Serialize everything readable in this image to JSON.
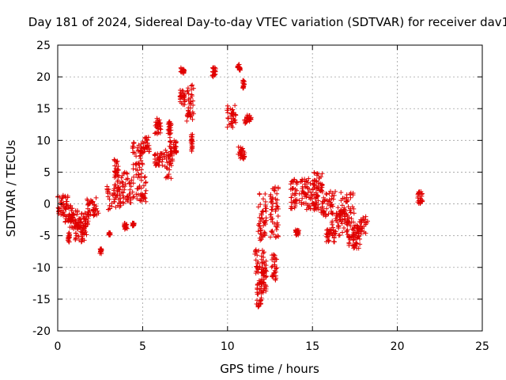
{
  "chart_data": {
    "type": "scatter",
    "title": "Day 181 of 2024, Sidereal Day-to-day VTEC variation (SDTVAR) for receiver dav1",
    "xlabel": "GPS time / hours",
    "ylabel": "SDTVAR / TECUs",
    "xlim": [
      0,
      25
    ],
    "ylim": [
      -20,
      25
    ],
    "xticks": [
      0,
      5,
      10,
      15,
      20,
      25
    ],
    "yticks": [
      -20,
      -15,
      -10,
      -5,
      0,
      5,
      10,
      15,
      20,
      25
    ],
    "xtick_labels": [
      "0",
      "5",
      "10",
      "15",
      "20",
      "25"
    ],
    "ytick_labels": [
      "-20",
      "-15",
      "-10",
      "-5",
      "0",
      "5",
      "10",
      "15",
      "20",
      "25"
    ],
    "grid": true,
    "marker": "+",
    "color": "#e00000",
    "series": [
      {
        "name": "SDTVAR",
        "clusters": [
          {
            "x": [
              0.0,
              0.6
            ],
            "y": [
              -2,
              1.5
            ]
          },
          {
            "x": [
              0.4,
              0.9
            ],
            "y": [
              -3,
              0
            ]
          },
          {
            "x": [
              0.6,
              0.7
            ],
            "y": [
              -6,
              -4.5
            ]
          },
          {
            "x": [
              0.7,
              1.2
            ],
            "y": [
              -4,
              -1
            ]
          },
          {
            "x": [
              1.0,
              1.7
            ],
            "y": [
              -6,
              -3
            ]
          },
          {
            "x": [
              1.2,
              1.8
            ],
            "y": [
              -4,
              -1
            ]
          },
          {
            "x": [
              1.7,
              2.4
            ],
            "y": [
              -2,
              1
            ]
          },
          {
            "x": [
              2.45,
              2.6
            ],
            "y": [
              -8,
              -7
            ]
          },
          {
            "x": [
              3.0,
              3.1
            ],
            "y": [
              -5,
              -4.5
            ]
          },
          {
            "x": [
              2.9,
              3.7
            ],
            "y": [
              -1,
              3
            ]
          },
          {
            "x": [
              3.3,
              3.6
            ],
            "y": [
              4,
              7
            ]
          },
          {
            "x": [
              3.5,
              4.5
            ],
            "y": [
              0,
              5
            ]
          },
          {
            "x": [
              3.9,
              4.1
            ],
            "y": [
              -4,
              -3
            ]
          },
          {
            "x": [
              4.4,
              4.5
            ],
            "y": [
              -3.5,
              -3
            ]
          },
          {
            "x": [
              4.4,
              5.0
            ],
            "y": [
              5,
              10
            ]
          },
          {
            "x": [
              4.6,
              5.2
            ],
            "y": [
              0,
              5
            ]
          },
          {
            "x": [
              5.0,
              5.4
            ],
            "y": [
              8,
              10.5
            ]
          },
          {
            "x": [
              5.7,
              6.1
            ],
            "y": [
              11,
              13.5
            ]
          },
          {
            "x": [
              5.7,
              6.3
            ],
            "y": [
              6,
              8
            ]
          },
          {
            "x": [
              6.3,
              6.8
            ],
            "y": [
              4,
              9
            ]
          },
          {
            "x": [
              6.5,
              6.7
            ],
            "y": [
              9,
              13
            ]
          },
          {
            "x": [
              6.8,
              7.0
            ],
            "y": [
              8,
              10
            ]
          },
          {
            "x": [
              7.2,
              7.5
            ],
            "y": [
              15.5,
              18
            ]
          },
          {
            "x": [
              7.25,
              7.45
            ],
            "y": [
              20.5,
              21.5
            ]
          },
          {
            "x": [
              7.6,
              8.0
            ],
            "y": [
              13,
              19
            ]
          },
          {
            "x": [
              7.85,
              7.95
            ],
            "y": [
              8,
              11
            ]
          },
          {
            "x": [
              9.1,
              9.3
            ],
            "y": [
              20,
              21.5
            ]
          },
          {
            "x": [
              9.95,
              10.5
            ],
            "y": [
              12,
              15.5
            ]
          },
          {
            "x": [
              10.6,
              10.8
            ],
            "y": [
              21,
              22
            ]
          },
          {
            "x": [
              10.6,
              11.0
            ],
            "y": [
              7,
              9
            ]
          },
          {
            "x": [
              10.9,
              11.0
            ],
            "y": [
              18,
              19.5
            ]
          },
          {
            "x": [
              11.0,
              11.4
            ],
            "y": [
              12.5,
              14
            ]
          },
          {
            "x": [
              11.6,
              12.2
            ],
            "y": [
              -11,
              -7
            ]
          },
          {
            "x": [
              11.7,
              12.0
            ],
            "y": [
              -16.5,
              -12
            ]
          },
          {
            "x": [
              11.8,
              12.3
            ],
            "y": [
              -6,
              2
            ]
          },
          {
            "x": [
              12.0,
              12.3
            ],
            "y": [
              -14,
              -9
            ]
          },
          {
            "x": [
              12.5,
              13.0
            ],
            "y": [
              -6,
              3
            ]
          },
          {
            "x": [
              12.6,
              12.9
            ],
            "y": [
              -12,
              -8
            ]
          },
          {
            "x": [
              13.7,
              14.1
            ],
            "y": [
              -1,
              4
            ]
          },
          {
            "x": [
              14.0,
              14.2
            ],
            "y": [
              -5,
              -4
            ]
          },
          {
            "x": [
              14.2,
              14.9
            ],
            "y": [
              -1,
              4
            ]
          },
          {
            "x": [
              15.0,
              15.6
            ],
            "y": [
              2,
              5
            ]
          },
          {
            "x": [
              14.9,
              15.4
            ],
            "y": [
              -1,
              2
            ]
          },
          {
            "x": [
              15.5,
              16.2
            ],
            "y": [
              -2,
              2
            ]
          },
          {
            "x": [
              15.8,
              16.4
            ],
            "y": [
              -6,
              -4
            ]
          },
          {
            "x": [
              16.1,
              17.5
            ],
            "y": [
              -5,
              2
            ]
          },
          {
            "x": [
              16.5,
              17.3
            ],
            "y": [
              -3,
              -1
            ]
          },
          {
            "x": [
              17.1,
              17.8
            ],
            "y": [
              -7,
              -5
            ]
          },
          {
            "x": [
              17.4,
              18.3
            ],
            "y": [
              -5,
              -2
            ]
          },
          {
            "x": [
              21.2,
              21.5
            ],
            "y": [
              0,
              2
            ]
          }
        ]
      }
    ]
  }
}
